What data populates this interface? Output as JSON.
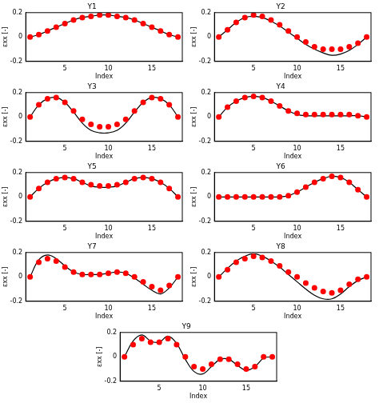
{
  "chart_data": [
    {
      "type": "line",
      "title": "Y1",
      "x_label": "Index",
      "y_label": "εxx [-]",
      "x": [
        1,
        2,
        3,
        4,
        5,
        6,
        7,
        8,
        9,
        10,
        11,
        12,
        13,
        14,
        15,
        16,
        17,
        18
      ],
      "xlim": [
        0.5,
        18.5
      ],
      "xticks": [
        5,
        10,
        15
      ],
      "ylim": [
        -0.2,
        0.2
      ],
      "yticks": [
        -0.2,
        0,
        0.2
      ],
      "grid": false,
      "series": [
        {
          "type": "scatter",
          "color": "#ff0000",
          "marker": "circle",
          "values": [
            0.0,
            0.02,
            0.05,
            0.08,
            0.11,
            0.14,
            0.16,
            0.17,
            0.18,
            0.18,
            0.17,
            0.16,
            0.14,
            0.11,
            0.08,
            0.05,
            0.02,
            0.0
          ]
        },
        {
          "type": "line",
          "color": "#000000",
          "line_style": "solid",
          "values": [
            0.0,
            0.02,
            0.05,
            0.08,
            0.11,
            0.14,
            0.16,
            0.17,
            0.18,
            0.18,
            0.17,
            0.16,
            0.14,
            0.11,
            0.08,
            0.05,
            0.02,
            0.0
          ]
        }
      ]
    },
    {
      "type": "line",
      "title": "Y2",
      "x_label": "Index",
      "y_label": "εxx [-]",
      "x": [
        1,
        2,
        3,
        4,
        5,
        6,
        7,
        8,
        9,
        10,
        11,
        12,
        13,
        14,
        15,
        16,
        17,
        18
      ],
      "xlim": [
        0.5,
        18.5
      ],
      "xticks": [
        5,
        10,
        15
      ],
      "ylim": [
        -0.2,
        0.2
      ],
      "yticks": [
        -0.2,
        0,
        0.2
      ],
      "grid": false,
      "series": [
        {
          "type": "scatter",
          "color": "#ff0000",
          "marker": "circle",
          "values": [
            0.0,
            0.06,
            0.12,
            0.16,
            0.18,
            0.17,
            0.14,
            0.1,
            0.05,
            0.0,
            -0.04,
            -0.08,
            -0.1,
            -0.1,
            -0.1,
            -0.08,
            -0.05,
            0.0
          ]
        },
        {
          "type": "line",
          "color": "#000000",
          "line_style": "solid",
          "values": [
            0.0,
            0.06,
            0.12,
            0.16,
            0.17,
            0.16,
            0.13,
            0.09,
            0.04,
            -0.01,
            -0.06,
            -0.1,
            -0.13,
            -0.15,
            -0.14,
            -0.11,
            -0.06,
            0.0
          ]
        }
      ]
    },
    {
      "type": "line",
      "title": "Y3",
      "x_label": "Index",
      "y_label": "εxx [-]",
      "x": [
        1,
        2,
        3,
        4,
        5,
        6,
        7,
        8,
        9,
        10,
        11,
        12,
        13,
        14,
        15,
        16,
        17,
        18
      ],
      "xlim": [
        0.5,
        18.5
      ],
      "xticks": [
        5,
        10,
        15
      ],
      "ylim": [
        -0.2,
        0.2
      ],
      "yticks": [
        -0.2,
        0,
        0.2
      ],
      "grid": false,
      "series": [
        {
          "type": "scatter",
          "color": "#ff0000",
          "marker": "circle",
          "values": [
            0.0,
            0.1,
            0.15,
            0.16,
            0.12,
            0.05,
            -0.02,
            -0.06,
            -0.08,
            -0.08,
            -0.06,
            -0.02,
            0.05,
            0.12,
            0.16,
            0.15,
            0.1,
            0.0
          ]
        },
        {
          "type": "line",
          "color": "#000000",
          "line_style": "solid",
          "values": [
            0.0,
            0.1,
            0.15,
            0.16,
            0.12,
            0.04,
            -0.05,
            -0.11,
            -0.13,
            -0.13,
            -0.11,
            -0.05,
            0.04,
            0.12,
            0.16,
            0.15,
            0.1,
            0.0
          ]
        }
      ]
    },
    {
      "type": "line",
      "title": "Y4",
      "x_label": "Index",
      "y_label": "εxx [-]",
      "x": [
        1,
        2,
        3,
        4,
        5,
        6,
        7,
        8,
        9,
        10,
        11,
        12,
        13,
        14,
        15,
        16,
        17,
        18
      ],
      "xlim": [
        0.5,
        18.5
      ],
      "xticks": [
        5,
        10,
        15
      ],
      "ylim": [
        -0.2,
        0.2
      ],
      "yticks": [
        -0.2,
        0,
        0.2
      ],
      "grid": false,
      "series": [
        {
          "type": "scatter",
          "color": "#ff0000",
          "marker": "circle",
          "values": [
            0.0,
            0.08,
            0.13,
            0.16,
            0.17,
            0.16,
            0.13,
            0.09,
            0.05,
            0.03,
            0.02,
            0.02,
            0.02,
            0.02,
            0.02,
            0.02,
            0.01,
            0.0
          ]
        },
        {
          "type": "line",
          "color": "#000000",
          "line_style": "solid",
          "values": [
            0.0,
            0.08,
            0.13,
            0.16,
            0.17,
            0.16,
            0.13,
            0.09,
            0.05,
            0.02,
            0.01,
            0.01,
            0.01,
            0.01,
            0.01,
            0.01,
            0.01,
            0.0
          ]
        }
      ]
    },
    {
      "type": "line",
      "title": "Y5",
      "x_label": "Index",
      "y_label": "εxx [-]",
      "x": [
        1,
        2,
        3,
        4,
        5,
        6,
        7,
        8,
        9,
        10,
        11,
        12,
        13,
        14,
        15,
        16,
        17,
        18
      ],
      "xlim": [
        0.5,
        18.5
      ],
      "xticks": [
        5,
        10,
        15
      ],
      "ylim": [
        -0.2,
        0.2
      ],
      "yticks": [
        -0.2,
        0,
        0.2
      ],
      "grid": false,
      "series": [
        {
          "type": "scatter",
          "color": "#ff0000",
          "marker": "circle",
          "values": [
            0.0,
            0.07,
            0.12,
            0.15,
            0.16,
            0.15,
            0.12,
            0.1,
            0.09,
            0.09,
            0.1,
            0.12,
            0.15,
            0.16,
            0.15,
            0.12,
            0.07,
            0.0
          ]
        },
        {
          "type": "line",
          "color": "#000000",
          "line_style": "solid",
          "values": [
            0.0,
            0.07,
            0.12,
            0.15,
            0.16,
            0.15,
            0.12,
            0.09,
            0.08,
            0.08,
            0.09,
            0.12,
            0.15,
            0.16,
            0.15,
            0.12,
            0.07,
            0.0
          ]
        }
      ]
    },
    {
      "type": "line",
      "title": "Y6",
      "x_label": "Index",
      "y_label": "εxx [-]",
      "x": [
        1,
        2,
        3,
        4,
        5,
        6,
        7,
        8,
        9,
        10,
        11,
        12,
        13,
        14,
        15,
        16,
        17,
        18
      ],
      "xlim": [
        0.5,
        18.5
      ],
      "xticks": [
        5,
        10,
        15
      ],
      "ylim": [
        -0.2,
        0.2
      ],
      "yticks": [
        -0.2,
        0,
        0.2
      ],
      "grid": false,
      "series": [
        {
          "type": "scatter",
          "color": "#ff0000",
          "marker": "circle",
          "values": [
            0.0,
            0.0,
            0.0,
            0.0,
            0.0,
            0.0,
            0.0,
            0.0,
            0.01,
            0.04,
            0.08,
            0.12,
            0.15,
            0.17,
            0.16,
            0.12,
            0.06,
            0.0
          ]
        },
        {
          "type": "line",
          "color": "#000000",
          "line_style": "solid",
          "values": [
            0.0,
            0.0,
            0.0,
            0.0,
            0.0,
            0.0,
            0.0,
            0.0,
            0.01,
            0.04,
            0.08,
            0.12,
            0.15,
            0.17,
            0.16,
            0.12,
            0.06,
            0.0
          ]
        }
      ]
    },
    {
      "type": "line",
      "title": "Y7",
      "x_label": "Index",
      "y_label": "εxx [-]",
      "x": [
        1,
        2,
        3,
        4,
        5,
        6,
        7,
        8,
        9,
        10,
        11,
        12,
        13,
        14,
        15,
        16,
        17,
        18
      ],
      "xlim": [
        0.5,
        18.5
      ],
      "xticks": [
        5,
        10,
        15
      ],
      "ylim": [
        -0.2,
        0.2
      ],
      "yticks": [
        -0.2,
        0,
        0.2
      ],
      "grid": false,
      "series": [
        {
          "type": "scatter",
          "color": "#ff0000",
          "marker": "circle",
          "values": [
            0.0,
            0.12,
            0.15,
            0.13,
            0.08,
            0.04,
            0.02,
            0.02,
            0.02,
            0.03,
            0.04,
            0.03,
            0.0,
            -0.04,
            -0.08,
            -0.11,
            -0.07,
            0.0
          ]
        },
        {
          "type": "line",
          "color": "#000000",
          "line_style": "solid",
          "values": [
            0.0,
            0.14,
            0.18,
            0.15,
            0.09,
            0.04,
            0.02,
            0.02,
            0.02,
            0.03,
            0.04,
            0.03,
            -0.01,
            -0.06,
            -0.11,
            -0.14,
            -0.09,
            0.0
          ]
        }
      ]
    },
    {
      "type": "line",
      "title": "Y8",
      "x_label": "Index",
      "y_label": "εxx [-]",
      "x": [
        1,
        2,
        3,
        4,
        5,
        6,
        7,
        8,
        9,
        10,
        11,
        12,
        13,
        14,
        15,
        16,
        17,
        18
      ],
      "xlim": [
        0.5,
        18.5
      ],
      "xticks": [
        5,
        10,
        15
      ],
      "ylim": [
        -0.2,
        0.2
      ],
      "yticks": [
        -0.2,
        0,
        0.2
      ],
      "grid": false,
      "series": [
        {
          "type": "scatter",
          "color": "#ff0000",
          "marker": "circle",
          "values": [
            0.0,
            0.06,
            0.12,
            0.15,
            0.17,
            0.16,
            0.13,
            0.09,
            0.04,
            0.0,
            -0.05,
            -0.09,
            -0.12,
            -0.13,
            -0.11,
            -0.06,
            -0.02,
            0.0
          ]
        },
        {
          "type": "line",
          "color": "#000000",
          "line_style": "solid",
          "values": [
            0.0,
            0.07,
            0.13,
            0.17,
            0.19,
            0.17,
            0.13,
            0.08,
            0.02,
            -0.04,
            -0.1,
            -0.15,
            -0.18,
            -0.18,
            -0.14,
            -0.08,
            -0.03,
            0.0
          ]
        }
      ]
    },
    {
      "type": "line",
      "title": "Y9",
      "x_label": "Index",
      "y_label": "εxx [-]",
      "x": [
        1,
        2,
        3,
        4,
        5,
        6,
        7,
        8,
        9,
        10,
        11,
        12,
        13,
        14,
        15,
        16,
        17,
        18
      ],
      "xlim": [
        0.5,
        18.5
      ],
      "xticks": [
        5,
        10,
        15
      ],
      "ylim": [
        -0.2,
        0.2
      ],
      "yticks": [
        -0.2,
        0,
        0.2
      ],
      "grid": false,
      "series": [
        {
          "type": "scatter",
          "color": "#ff0000",
          "marker": "circle",
          "values": [
            0.0,
            0.1,
            0.15,
            0.12,
            0.12,
            0.15,
            0.1,
            0.0,
            -0.08,
            -0.1,
            -0.06,
            -0.02,
            -0.02,
            -0.06,
            -0.1,
            -0.08,
            0.0,
            0.0
          ]
        },
        {
          "type": "line",
          "color": "#000000",
          "line_style": "solid",
          "values": [
            0.0,
            0.13,
            0.18,
            0.13,
            0.12,
            0.17,
            0.11,
            -0.02,
            -0.12,
            -0.14,
            -0.08,
            -0.02,
            -0.02,
            -0.07,
            -0.11,
            -0.08,
            -0.01,
            0.0
          ]
        }
      ]
    }
  ]
}
